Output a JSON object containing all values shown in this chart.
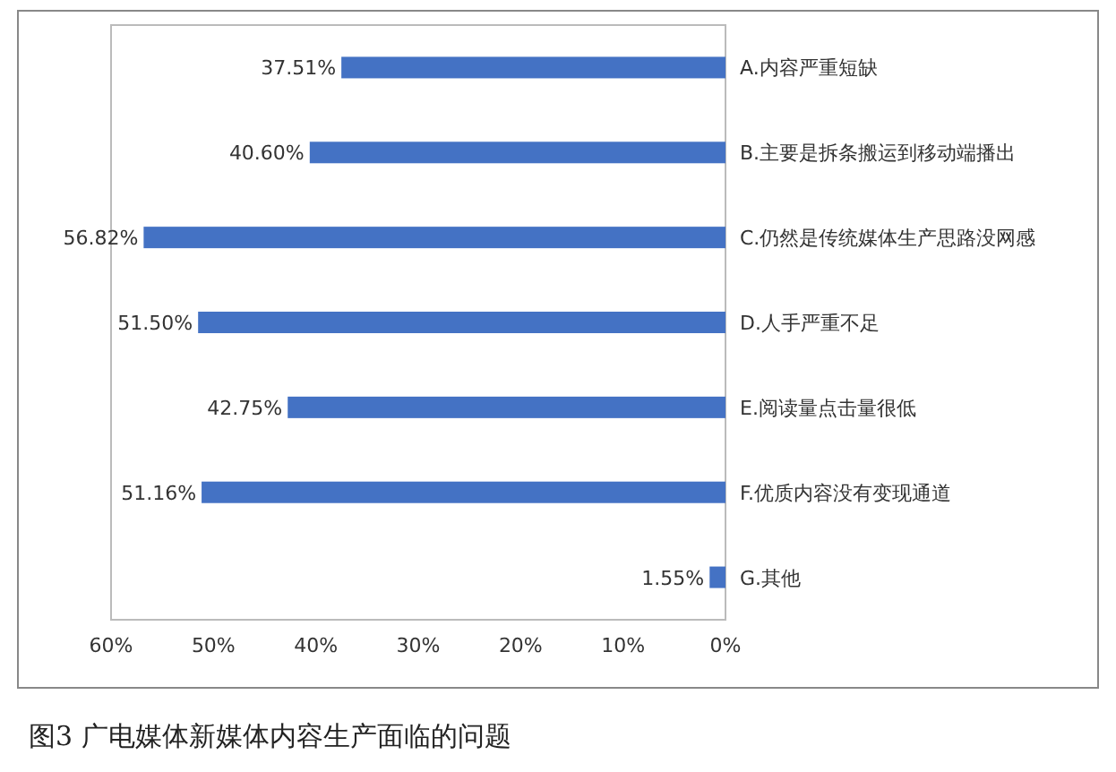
{
  "chart_data": {
    "type": "bar",
    "orientation": "horizontal",
    "title": "图3  广电媒体新媒体内容生产面临的问题",
    "categories": [
      "A.内容严重短缺",
      "B.主要是拆条搬运到移动端播出",
      "C.仍然是传统媒体生产思路没网感",
      "D.人手严重不足",
      "E.阅读量点击量很低",
      "F.优质内容没有变现通道",
      "G.其他"
    ],
    "values": [
      37.51,
      40.6,
      56.82,
      51.5,
      42.75,
      51.16,
      1.55
    ],
    "value_labels": [
      "37.51%",
      "40.60%",
      "56.82%",
      "51.50%",
      "42.75%",
      "51.16%",
      "1.55%"
    ],
    "color": "#4472c4",
    "xlim": [
      60,
      0
    ],
    "xticks": [
      {
        "value": 60,
        "label": "60%"
      },
      {
        "value": 50,
        "label": "50%"
      },
      {
        "value": 40,
        "label": "40%"
      },
      {
        "value": 30,
        "label": "30%"
      },
      {
        "value": 20,
        "label": "20%"
      },
      {
        "value": 10,
        "label": "10%"
      },
      {
        "value": 0,
        "label": "0%"
      }
    ]
  }
}
